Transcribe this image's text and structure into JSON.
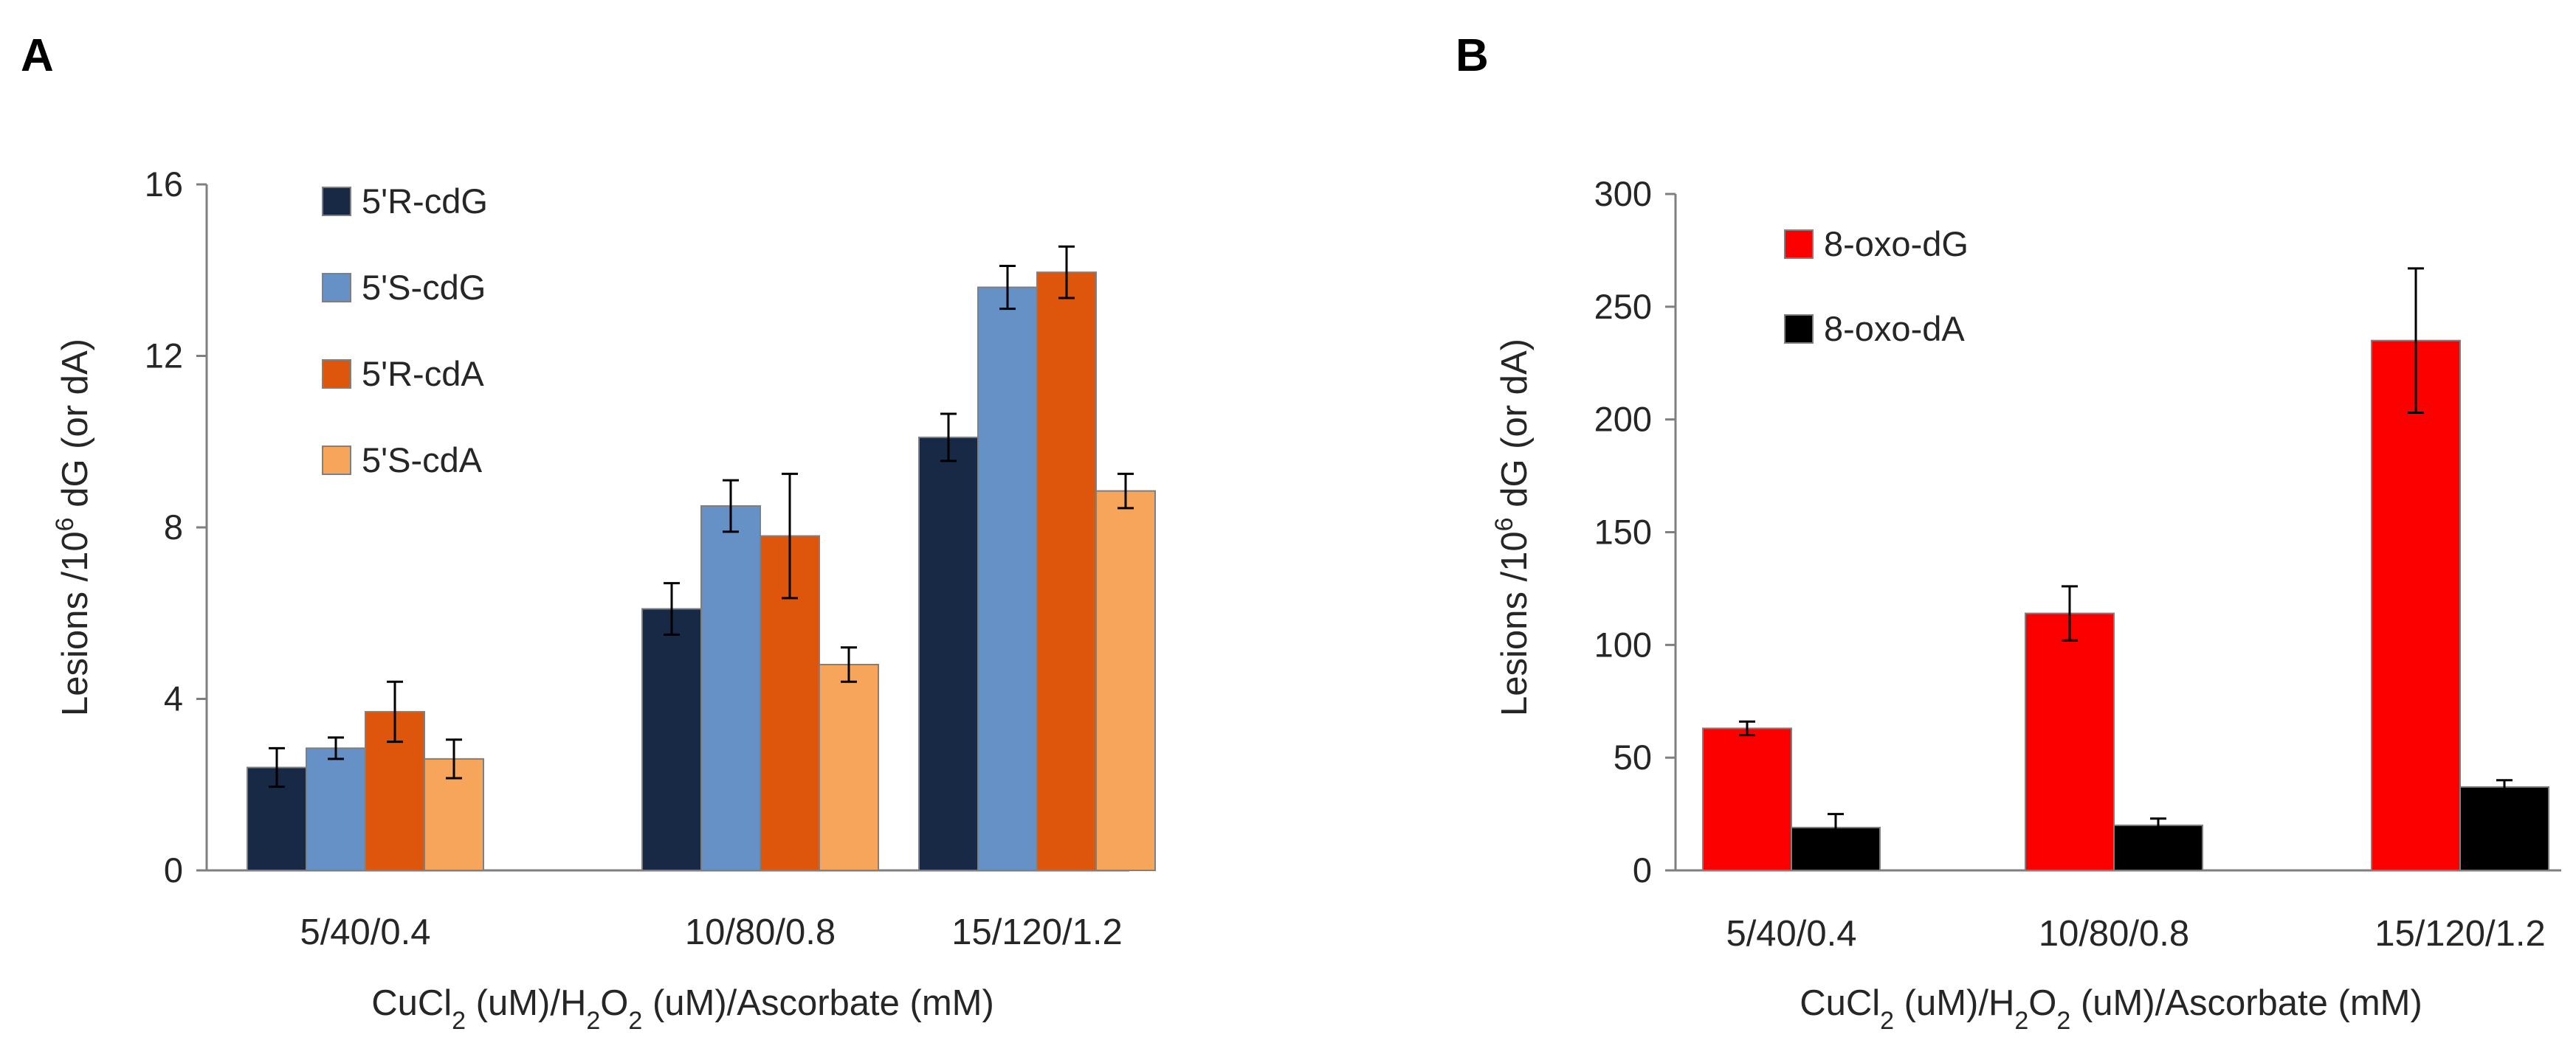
{
  "chart_data": [
    {
      "panel": "A",
      "type": "bar",
      "ylabel": "Lesions /10⁶ dG (or dA)",
      "xlabel": "CuCl₂ (uM)/H₂O₂ (uM)/Ascorbate (mM)",
      "categories": [
        "5/40/0.4",
        "10/80/0.8",
        "15/120/1.2"
      ],
      "ylim": [
        0,
        16
      ],
      "yticks": [
        "0",
        "4",
        "8",
        "12",
        "16"
      ],
      "legend_position": "top-left",
      "series": [
        {
          "name": "5'R-cdG",
          "color": "#172945",
          "values": [
            2.4,
            6.1,
            10.1
          ],
          "errors": [
            0.45,
            0.6,
            0.55
          ]
        },
        {
          "name": "5'S-cdG",
          "color": "#6591c7",
          "values": [
            2.85,
            8.5,
            13.6
          ],
          "errors": [
            0.25,
            0.6,
            0.5
          ]
        },
        {
          "name": "5'R-cdA",
          "color": "#dd560c",
          "values": [
            3.7,
            7.8,
            13.95
          ],
          "errors": [
            0.7,
            1.45,
            0.6
          ]
        },
        {
          "name": "5'S-cdA",
          "color": "#f6a55b",
          "values": [
            2.6,
            4.8,
            8.85
          ],
          "errors": [
            0.45,
            0.4,
            0.4
          ]
        }
      ]
    },
    {
      "panel": "B",
      "type": "bar",
      "ylabel": "Lesions /10⁶  dG (or dA)",
      "xlabel": "CuCl₂ (uM)/H₂O₂ (uM)/Ascorbate (mM)",
      "categories": [
        "5/40/0.4",
        "10/80/0.8",
        "15/120/1.2"
      ],
      "ylim": [
        0,
        300
      ],
      "yticks": [
        "0",
        "50",
        "100",
        "150",
        "200",
        "250",
        "300"
      ],
      "legend_position": "top-left",
      "series": [
        {
          "name": "8-oxo-dG",
          "color": "#fc0000",
          "values": [
            63,
            114,
            235
          ],
          "errors": [
            3,
            12,
            32
          ]
        },
        {
          "name": "8-oxo-dA",
          "color": "#000000",
          "values": [
            19,
            20,
            37
          ],
          "errors": [
            6,
            3,
            3
          ]
        }
      ]
    }
  ]
}
